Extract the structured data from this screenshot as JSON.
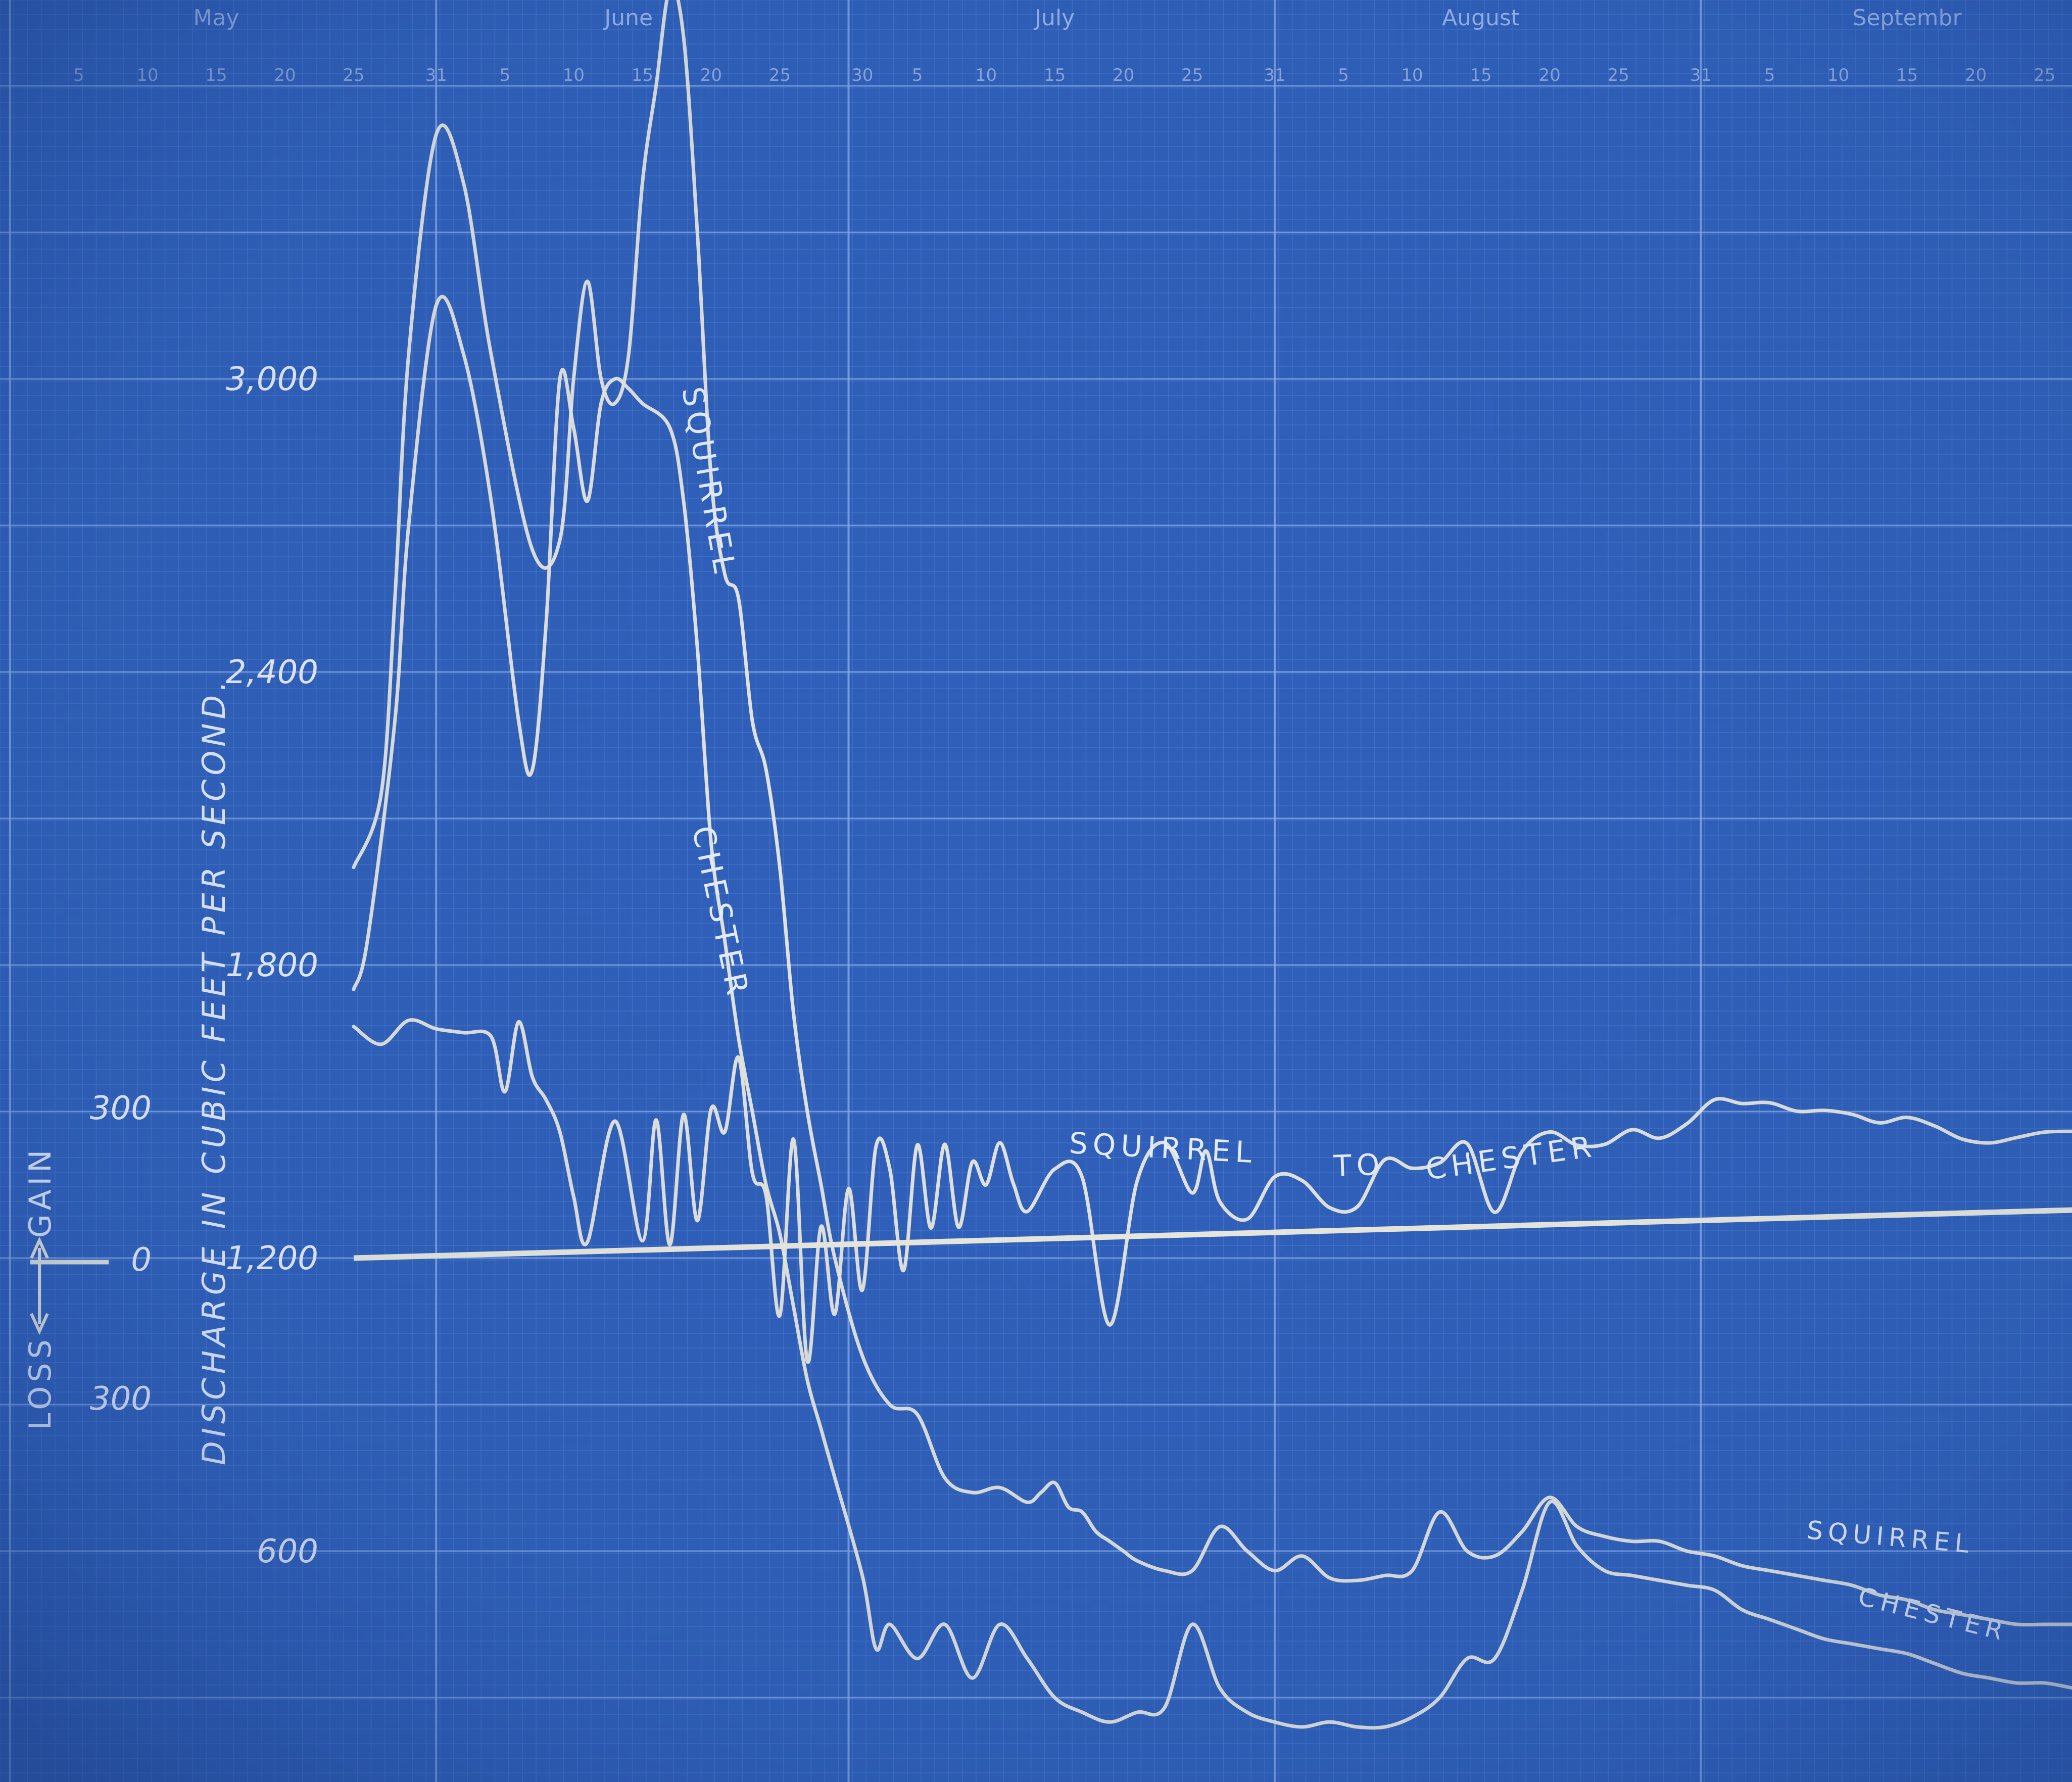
{
  "chart_data": {
    "type": "line",
    "ylabel": "DISCHARGE IN CUBIC FEET PER SECOND.",
    "secondary_ylabel": {
      "gain": "GAIN",
      "loss": "LOSS"
    },
    "months": [
      "May",
      "June",
      "July",
      "August",
      "September"
    ],
    "month_labels": [
      "May",
      "June",
      "July",
      "August",
      "Septembr"
    ],
    "day_ticks": [
      "5",
      "10",
      "15",
      "20",
      "25",
      "31",
      "5",
      "10",
      "15",
      "20",
      "25",
      "30",
      "5",
      "10",
      "15",
      "20",
      "25",
      "31",
      "5",
      "10",
      "15",
      "20",
      "25",
      "31",
      "5",
      "10",
      "15",
      "20",
      "25",
      "30"
    ],
    "x_domain": [
      0,
      150
    ],
    "ylim": [
      200,
      3800
    ],
    "yticks": [
      600,
      1200,
      1800,
      2400,
      3000
    ],
    "ytick_labels": [
      "600",
      "1,200",
      "1,800",
      "2,400",
      "3,000"
    ],
    "secondary_yticks": [
      "300",
      "0",
      "300"
    ],
    "grid": true,
    "series": [
      {
        "name": "SQUIRREL",
        "x": [
          25,
          27,
          28,
          29,
          31,
          33,
          35,
          38,
          40,
          41,
          42,
          43,
          44,
          45,
          46,
          47,
          48,
          49,
          50,
          51,
          52,
          53,
          54,
          55,
          56,
          57,
          58,
          59,
          60,
          62,
          64,
          66,
          68,
          70,
          72,
          74,
          75,
          76,
          77,
          78,
          79,
          80,
          81,
          82,
          84,
          86,
          88,
          90,
          92,
          94,
          96,
          98,
          100,
          102,
          104,
          106,
          108,
          110,
          112,
          114,
          116,
          118,
          120,
          122,
          124,
          126,
          128,
          130,
          132,
          134,
          136,
          138,
          140,
          142,
          144,
          146,
          148,
          150
        ],
        "values": [
          2000,
          2150,
          2550,
          3050,
          3500,
          3400,
          3050,
          2650,
          2670,
          3000,
          3200,
          3000,
          2950,
          3050,
          3400,
          3600,
          3800,
          3700,
          3300,
          2800,
          2600,
          2550,
          2300,
          2200,
          2000,
          1700,
          1500,
          1350,
          1200,
          1000,
          900,
          880,
          750,
          720,
          730,
          700,
          720,
          740,
          690,
          680,
          640,
          620,
          600,
          580,
          560,
          560,
          650,
          600,
          560,
          590,
          545,
          540,
          550,
          560,
          680,
          600,
          590,
          640,
          710,
          650,
          630,
          620,
          620,
          600,
          590,
          570,
          560,
          550,
          540,
          530,
          510,
          500,
          480,
          470,
          460,
          450,
          450,
          450
        ]
      },
      {
        "name": "CHESTER",
        "x": [
          25,
          26,
          28,
          29,
          31,
          33,
          35,
          37,
          38,
          39,
          40,
          41,
          42,
          43,
          44,
          45,
          46,
          48,
          49,
          50,
          51,
          52,
          53,
          54,
          55,
          56,
          57,
          58,
          59,
          60,
          62,
          63,
          64,
          66,
          68,
          70,
          72,
          74,
          76,
          78,
          80,
          82,
          84,
          86,
          88,
          90,
          92,
          94,
          96,
          98,
          100,
          102,
          104,
          106,
          108,
          110,
          112,
          114,
          116,
          118,
          120,
          122,
          124,
          126,
          128,
          130,
          132,
          134,
          136,
          138,
          140,
          142,
          144,
          146,
          148,
          150
        ],
        "values": [
          1750,
          1850,
          2300,
          2700,
          3150,
          3050,
          2750,
          2300,
          2200,
          2500,
          3000,
          2900,
          2750,
          2950,
          3000,
          2980,
          2950,
          2900,
          2750,
          2450,
          2050,
          1850,
          1650,
          1500,
          1350,
          1250,
          1100,
          950,
          850,
          750,
          550,
          400,
          450,
          380,
          450,
          340,
          450,
          380,
          300,
          270,
          250,
          270,
          280,
          450,
          320,
          270,
          250,
          240,
          250,
          240,
          240,
          260,
          300,
          380,
          380,
          520,
          700,
          610,
          560,
          550,
          540,
          530,
          520,
          480,
          460,
          440,
          420,
          410,
          400,
          390,
          370,
          350,
          340,
          330,
          330,
          320
        ]
      },
      {
        "name": "SQUIRREL TO CHESTER",
        "secondary_axis": true,
        "x": [
          25,
          27,
          29,
          31,
          33,
          35,
          36,
          37,
          38,
          39,
          40,
          41,
          42,
          44,
          46,
          47,
          48,
          49,
          50,
          51,
          52,
          53,
          54,
          55,
          56,
          57,
          58,
          59,
          60,
          61,
          62,
          63,
          64,
          65,
          66,
          67,
          68,
          69,
          70,
          71,
          72,
          73,
          74,
          76,
          78,
          80,
          82,
          84,
          86,
          87,
          88,
          90,
          92,
          94,
          96,
          98,
          100,
          102,
          104,
          106,
          108,
          110,
          112,
          114,
          116,
          118,
          120,
          122,
          124,
          126,
          128,
          130,
          132,
          134,
          136,
          138,
          140,
          142,
          144,
          146,
          148,
          150
        ],
        "values": [
          500,
          460,
          510,
          490,
          480,
          470,
          350,
          500,
          380,
          330,
          260,
          120,
          20,
          280,
          20,
          280,
          10,
          290,
          60,
          300,
          250,
          410,
          160,
          110,
          -150,
          230,
          -250,
          40,
          -150,
          120,
          -100,
          210,
          160,
          -60,
          210,
          30,
          210,
          30,
          170,
          120,
          210,
          120,
          60,
          150,
          130,
          -190,
          120,
          200,
          90,
          180,
          70,
          30,
          120,
          110,
          50,
          50,
          150,
          130,
          140,
          180,
          30,
          160,
          200,
          170,
          170,
          200,
          180,
          210,
          260,
          250,
          250,
          230,
          230,
          220,
          200,
          210,
          190,
          160,
          150,
          160,
          170,
          170
        ]
      }
    ],
    "annotations": [
      "SQUIRREL",
      "CHESTER",
      "SQUIRREL",
      "TO",
      "CHESTER",
      "SQUIRREL",
      "CHESTER"
    ]
  },
  "colors": {
    "background": "#2f5fb8",
    "line": "#f4f0df",
    "minor_grid": "#4f7fd2",
    "major_grid": "#8fb0ec"
  }
}
